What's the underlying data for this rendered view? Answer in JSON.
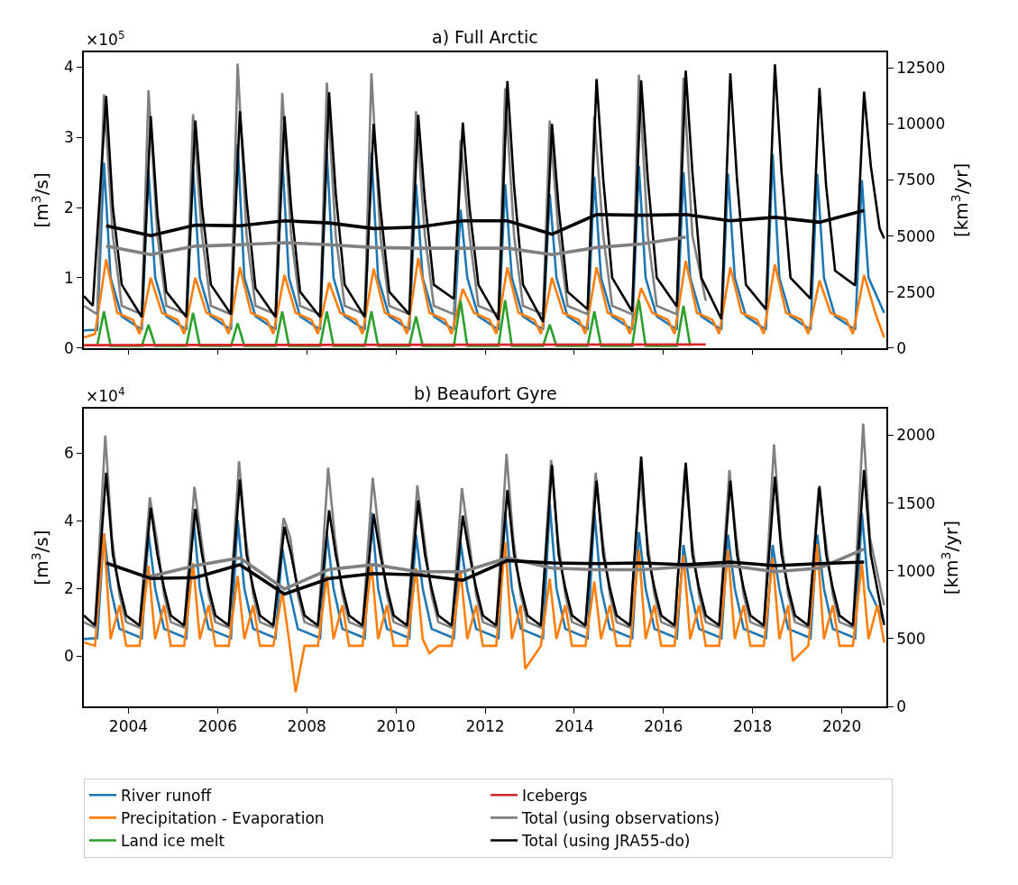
{
  "chart_data": [
    {
      "type": "line",
      "title": "a) Full Arctic",
      "ylabel": "[m$^{3}$/s]",
      "y2label": "[km$^{3}$/yr]",
      "annotations": [
        "×10$^{5}$"
      ],
      "legend": "bottom",
      "tick_labels": "y",
      "xlim": [
        2003,
        2021
      ],
      "xticks": [
        {
          "value": 2004,
          "label": null
        },
        {
          "value": 2006,
          "label": null
        },
        {
          "value": 2008,
          "label": null
        },
        {
          "value": 2010,
          "label": null
        },
        {
          "value": 2012,
          "label": null
        },
        {
          "value": 2014,
          "label": null
        },
        {
          "value": 2016,
          "label": null
        },
        {
          "value": 2018,
          "label": null
        },
        {
          "value": 2020,
          "label": null
        }
      ],
      "ylim": [
        0,
        4.21
      ],
      "yticks": [
        0,
        1,
        2,
        3,
        4
      ],
      "y2lim": [
        0,
        13200
      ],
      "y2ticks": [
        0,
        2500,
        5000,
        7500,
        10000,
        12500
      ],
      "series": [
        {
          "name": "River runoff",
          "color": "#1f77b4",
          "x": [
            2003.0,
            2003.3,
            2003.45,
            2003.6,
            2003.85,
            2004.3,
            2004.45,
            2004.6,
            2004.85,
            2005.3,
            2005.45,
            2005.6,
            2005.85,
            2006.3,
            2006.45,
            2006.6,
            2006.85,
            2007.3,
            2007.45,
            2007.6,
            2007.85,
            2008.3,
            2008.45,
            2008.6,
            2008.85,
            2009.3,
            2009.45,
            2009.6,
            2009.85,
            2010.3,
            2010.45,
            2010.6,
            2010.85,
            2011.3,
            2011.45,
            2011.6,
            2011.85,
            2012.3,
            2012.45,
            2012.6,
            2012.85,
            2013.3,
            2013.45,
            2013.6,
            2013.85,
            2014.3,
            2014.45,
            2014.6,
            2014.85,
            2015.3,
            2015.45,
            2015.6,
            2015.85,
            2016.3,
            2016.45,
            2016.6,
            2016.85,
            2017.3,
            2017.45,
            2017.6,
            2017.85,
            2018.3,
            2018.45,
            2018.6,
            2018.85,
            2019.3,
            2019.45,
            2019.6,
            2019.85,
            2020.3,
            2020.45,
            2020.6,
            2020.95
          ],
          "values": [
            0.25,
            0.26,
            2.64,
            1.0,
            0.45,
            0.26,
            2.52,
            1.0,
            0.45,
            0.26,
            2.55,
            1.0,
            0.45,
            0.26,
            2.91,
            1.0,
            0.45,
            0.26,
            2.7,
            1.0,
            0.45,
            0.26,
            2.79,
            1.0,
            0.45,
            0.26,
            2.78,
            1.0,
            0.45,
            0.26,
            2.33,
            1.0,
            0.45,
            0.26,
            1.97,
            1.0,
            0.45,
            0.26,
            2.33,
            1.0,
            0.45,
            0.26,
            2.19,
            1.0,
            0.45,
            0.26,
            2.44,
            1.0,
            0.45,
            0.26,
            2.59,
            1.0,
            0.45,
            0.26,
            2.5,
            1.0,
            0.45,
            0.26,
            2.48,
            1.0,
            0.45,
            0.26,
            2.76,
            1.0,
            0.45,
            0.26,
            2.48,
            1.0,
            0.45,
            0.26,
            2.39,
            1.0,
            0.5
          ]
        },
        {
          "name": "Precipitation - Evaporation",
          "color": "#ff7f0e",
          "x": [
            2003.0,
            2003.25,
            2003.5,
            2003.75,
            2004.1,
            2004.25,
            2004.5,
            2004.75,
            2005.1,
            2005.25,
            2005.5,
            2005.75,
            2006.1,
            2006.25,
            2006.5,
            2006.75,
            2007.1,
            2007.25,
            2007.5,
            2007.75,
            2008.1,
            2008.25,
            2008.5,
            2008.75,
            2009.1,
            2009.25,
            2009.5,
            2009.75,
            2010.1,
            2010.25,
            2010.5,
            2010.75,
            2011.1,
            2011.25,
            2011.5,
            2011.75,
            2012.1,
            2012.25,
            2012.5,
            2012.75,
            2013.1,
            2013.25,
            2013.5,
            2013.75,
            2014.1,
            2014.25,
            2014.5,
            2014.75,
            2015.1,
            2015.25,
            2015.5,
            2015.75,
            2016.1,
            2016.25,
            2016.5,
            2016.75,
            2017.1,
            2017.25,
            2017.5,
            2017.75,
            2018.1,
            2018.25,
            2018.5,
            2018.75,
            2019.1,
            2019.25,
            2019.5,
            2019.75,
            2020.1,
            2020.25,
            2020.5,
            2020.75,
            2020.95
          ],
          "values": [
            0.15,
            0.2,
            1.26,
            0.5,
            0.4,
            0.2,
            1.0,
            0.5,
            0.4,
            0.2,
            1.0,
            0.5,
            0.4,
            0.2,
            1.15,
            0.5,
            0.4,
            0.2,
            1.04,
            0.5,
            0.4,
            0.2,
            0.93,
            0.5,
            0.4,
            0.2,
            1.13,
            0.5,
            0.4,
            0.2,
            1.28,
            0.5,
            0.4,
            0.2,
            0.84,
            0.5,
            0.4,
            0.2,
            1.15,
            0.5,
            0.4,
            0.2,
            1.0,
            0.5,
            0.4,
            0.2,
            1.15,
            0.5,
            0.4,
            0.2,
            0.85,
            0.5,
            0.4,
            0.2,
            1.24,
            0.5,
            0.4,
            0.2,
            1.15,
            0.5,
            0.4,
            0.2,
            1.19,
            0.5,
            0.4,
            0.2,
            0.96,
            0.5,
            0.4,
            0.2,
            1.04,
            0.5,
            0.15
          ]
        },
        {
          "name": "Land ice melt",
          "color": "#2ca02c",
          "x": [
            2003.3,
            2003.45,
            2003.6,
            2004.3,
            2004.45,
            2004.6,
            2005.3,
            2005.45,
            2005.6,
            2006.3,
            2006.45,
            2006.6,
            2007.3,
            2007.45,
            2007.6,
            2008.3,
            2008.45,
            2008.6,
            2009.3,
            2009.45,
            2009.6,
            2010.3,
            2010.45,
            2010.6,
            2011.3,
            2011.45,
            2011.6,
            2012.3,
            2012.45,
            2012.6,
            2013.3,
            2013.45,
            2013.6,
            2014.3,
            2014.45,
            2014.6,
            2015.3,
            2015.45,
            2015.6,
            2016.3,
            2016.45,
            2016.6
          ],
          "values": [
            0.03,
            0.52,
            0.03,
            0.03,
            0.33,
            0.03,
            0.03,
            0.5,
            0.03,
            0.03,
            0.35,
            0.03,
            0.03,
            0.52,
            0.03,
            0.03,
            0.52,
            0.03,
            0.03,
            0.52,
            0.03,
            0.03,
            0.45,
            0.03,
            0.03,
            0.67,
            0.03,
            0.03,
            0.68,
            0.03,
            0.03,
            0.33,
            0.03,
            0.03,
            0.52,
            0.03,
            0.03,
            0.68,
            0.03,
            0.03,
            0.6,
            0.03
          ]
        },
        {
          "name": "Icebergs",
          "color": "#d62728",
          "x": [
            2003.0,
            2016.95
          ],
          "values": [
            0.04,
            0.05
          ]
        },
        {
          "name": "Total (using observations)",
          "color": "#808080",
          "x": [
            2003.0,
            2003.3,
            2003.45,
            2003.65,
            2003.85,
            2004.3,
            2004.45,
            2004.65,
            2004.85,
            2005.3,
            2005.45,
            2005.65,
            2005.85,
            2006.3,
            2006.45,
            2006.65,
            2006.85,
            2007.3,
            2007.45,
            2007.65,
            2007.85,
            2008.3,
            2008.45,
            2008.65,
            2008.85,
            2009.3,
            2009.45,
            2009.65,
            2009.85,
            2010.3,
            2010.45,
            2010.65,
            2010.85,
            2011.3,
            2011.45,
            2011.65,
            2011.85,
            2012.3,
            2012.45,
            2012.65,
            2012.85,
            2013.3,
            2013.45,
            2013.65,
            2013.85,
            2014.3,
            2014.45,
            2014.65,
            2014.85,
            2015.3,
            2015.45,
            2015.65,
            2015.85,
            2016.3,
            2016.45,
            2016.65,
            2016.95
          ],
          "values": [
            0.6,
            0.48,
            3.61,
            1.6,
            0.6,
            0.48,
            3.67,
            1.6,
            0.6,
            0.48,
            3.33,
            1.6,
            0.6,
            0.48,
            4.05,
            1.6,
            0.6,
            0.48,
            3.63,
            1.6,
            0.6,
            0.48,
            3.78,
            1.6,
            0.6,
            0.48,
            3.91,
            1.6,
            0.6,
            0.48,
            3.37,
            1.6,
            0.6,
            0.48,
            2.96,
            1.6,
            0.6,
            0.48,
            3.7,
            1.6,
            0.6,
            0.48,
            3.24,
            1.6,
            0.6,
            0.48,
            3.3,
            1.6,
            0.6,
            0.48,
            3.89,
            1.6,
            0.6,
            0.48,
            3.85,
            1.6,
            0.67
          ]
        },
        {
          "name": "Total (using JRA55-do)",
          "color": "#000000",
          "x": [
            2003.0,
            2003.2,
            2003.5,
            2003.65,
            2003.85,
            2004.3,
            2004.5,
            2004.65,
            2004.85,
            2005.3,
            2005.5,
            2005.65,
            2005.85,
            2006.3,
            2006.5,
            2006.65,
            2006.85,
            2007.3,
            2007.5,
            2007.65,
            2007.85,
            2008.3,
            2008.5,
            2008.65,
            2008.85,
            2009.3,
            2009.5,
            2009.65,
            2009.85,
            2010.3,
            2010.5,
            2010.65,
            2010.85,
            2011.3,
            2011.5,
            2011.65,
            2011.85,
            2012.3,
            2012.5,
            2012.65,
            2012.85,
            2013.3,
            2013.5,
            2013.65,
            2013.85,
            2014.3,
            2014.5,
            2014.65,
            2014.85,
            2015.3,
            2015.5,
            2015.65,
            2015.85,
            2016.3,
            2016.5,
            2016.65,
            2016.85,
            2017.3,
            2017.5,
            2017.65,
            2017.85,
            2018.3,
            2018.5,
            2018.65,
            2018.85,
            2019.3,
            2019.5,
            2019.65,
            2019.85,
            2020.3,
            2020.5,
            2020.65,
            2020.85,
            2020.95
          ],
          "values": [
            0.74,
            0.6,
            3.59,
            2.0,
            0.9,
            0.44,
            3.3,
            1.9,
            0.8,
            0.44,
            3.24,
            2.0,
            0.9,
            0.48,
            3.37,
            2.1,
            0.85,
            0.44,
            3.3,
            2.0,
            0.8,
            0.44,
            3.64,
            2.2,
            0.9,
            0.44,
            3.19,
            2.0,
            0.8,
            0.48,
            3.32,
            2.1,
            0.9,
            0.7,
            3.21,
            2.0,
            0.9,
            0.4,
            3.8,
            2.3,
            0.9,
            0.37,
            3.19,
            2.0,
            0.8,
            0.55,
            3.83,
            2.4,
            1.0,
            0.52,
            3.81,
            2.4,
            1.0,
            0.59,
            3.95,
            2.5,
            1.0,
            0.41,
            3.91,
            2.4,
            0.9,
            0.55,
            4.04,
            2.5,
            1.0,
            0.7,
            3.7,
            2.3,
            1.1,
            0.89,
            3.65,
            2.6,
            1.7,
            1.56
          ]
        },
        {
          "color": "#808080",
          "x": [
            2003.5,
            2004.5,
            2005.5,
            2006.5,
            2007.5,
            2008.5,
            2009.5,
            2010.5,
            2011.5,
            2012.5,
            2013.5,
            2014.5,
            2015.5,
            2016.5
          ],
          "values": [
            1.45,
            1.33,
            1.45,
            1.47,
            1.5,
            1.47,
            1.43,
            1.42,
            1.42,
            1.42,
            1.33,
            1.43,
            1.48,
            1.58
          ]
        },
        {
          "color": "#000000",
          "x": [
            2003.5,
            2004.5,
            2005.5,
            2006.5,
            2007.5,
            2008.5,
            2009.5,
            2010.5,
            2011.5,
            2012.5,
            2013.5,
            2014.5,
            2015.5,
            2016.5,
            2017.5,
            2018.5,
            2019.5,
            2020.5
          ],
          "values": [
            1.74,
            1.6,
            1.75,
            1.74,
            1.81,
            1.78,
            1.7,
            1.72,
            1.81,
            1.81,
            1.62,
            1.9,
            1.89,
            1.9,
            1.81,
            1.86,
            1.79,
            1.96
          ]
        }
      ]
    },
    {
      "type": "line",
      "title": "b) Beaufort Gyre",
      "ylabel": "[m$^{3}$/s]",
      "y2label": "[km$^{3}$/yr]",
      "annotations": [
        "×10$^{4}$"
      ],
      "legend": "bottom",
      "xlim": [
        2003,
        2021
      ],
      "xticks": [
        2004,
        2006,
        2008,
        2010,
        2012,
        2014,
        2016,
        2018,
        2020
      ],
      "ylim": [
        -1.49,
        7.31
      ],
      "yticks": [
        0,
        2,
        4,
        6
      ],
      "y2lim": [
        0,
        2195
      ],
      "y2ticks": [
        0,
        500,
        1000,
        1500,
        2000
      ],
      "series": [
        {
          "name": "River runoff",
          "color": "#1f77b4",
          "x": [
            2003.0,
            2003.3,
            2003.45,
            2003.6,
            2003.8,
            2004.3,
            2004.45,
            2004.6,
            2004.8,
            2005.3,
            2005.45,
            2005.6,
            2005.8,
            2006.3,
            2006.45,
            2006.6,
            2006.8,
            2007.3,
            2007.45,
            2007.6,
            2007.8,
            2008.3,
            2008.45,
            2008.6,
            2008.8,
            2009.3,
            2009.45,
            2009.6,
            2009.8,
            2010.3,
            2010.45,
            2010.6,
            2010.8,
            2011.3,
            2011.45,
            2011.6,
            2011.8,
            2012.3,
            2012.45,
            2012.6,
            2012.8,
            2013.3,
            2013.45,
            2013.6,
            2013.8,
            2014.3,
            2014.45,
            2014.6,
            2014.8,
            2015.3,
            2015.45,
            2015.6,
            2015.8,
            2016.3,
            2016.45,
            2016.6,
            2016.8,
            2017.3,
            2017.45,
            2017.6,
            2017.8,
            2018.3,
            2018.45,
            2018.6,
            2018.8,
            2019.3,
            2019.45,
            2019.6,
            2019.8,
            2020.3,
            2020.45,
            2020.6,
            2020.95
          ],
          "values": [
            0.5,
            0.53,
            3.62,
            2.0,
            0.8,
            0.53,
            3.62,
            2.0,
            0.8,
            0.53,
            4.23,
            2.0,
            0.8,
            0.53,
            4.02,
            2.0,
            0.8,
            0.53,
            3.2,
            2.0,
            0.8,
            0.53,
            3.62,
            2.0,
            0.8,
            0.53,
            4.24,
            2.0,
            0.8,
            0.53,
            3.59,
            2.0,
            0.8,
            0.53,
            3.36,
            2.0,
            0.8,
            0.53,
            4.27,
            2.0,
            0.8,
            0.53,
            4.5,
            2.0,
            0.8,
            0.53,
            4.27,
            2.0,
            0.8,
            0.53,
            3.66,
            2.0,
            0.8,
            0.53,
            3.28,
            2.0,
            0.8,
            0.53,
            3.59,
            2.0,
            0.8,
            0.53,
            3.28,
            2.0,
            0.8,
            0.53,
            3.59,
            2.0,
            0.8,
            0.53,
            4.23,
            2.0,
            1.0
          ]
        },
        {
          "name": "Precipitation - Evaporation",
          "color": "#ff7f0e",
          "x": [
            2003.0,
            2003.25,
            2003.45,
            2003.6,
            2003.8,
            2003.95,
            2004.25,
            2004.45,
            2004.6,
            2004.8,
            2004.95,
            2005.25,
            2005.45,
            2005.6,
            2005.8,
            2005.95,
            2006.25,
            2006.45,
            2006.6,
            2006.8,
            2006.95,
            2007.25,
            2007.45,
            2007.6,
            2007.75,
            2007.95,
            2008.25,
            2008.45,
            2008.6,
            2008.8,
            2008.95,
            2009.25,
            2009.45,
            2009.6,
            2009.8,
            2009.95,
            2010.25,
            2010.45,
            2010.6,
            2010.75,
            2010.95,
            2011.25,
            2011.45,
            2011.6,
            2011.8,
            2011.95,
            2012.25,
            2012.45,
            2012.6,
            2012.8,
            2012.9,
            2013.25,
            2013.45,
            2013.6,
            2013.8,
            2013.95,
            2014.25,
            2014.45,
            2014.6,
            2014.8,
            2014.95,
            2015.25,
            2015.45,
            2015.6,
            2015.8,
            2015.95,
            2016.25,
            2016.45,
            2016.6,
            2016.8,
            2016.95,
            2017.25,
            2017.45,
            2017.6,
            2017.8,
            2017.95,
            2018.25,
            2018.45,
            2018.6,
            2018.8,
            2018.9,
            2019.25,
            2019.45,
            2019.6,
            2019.8,
            2019.95,
            2020.25,
            2020.45,
            2020.6,
            2020.8,
            2020.95
          ],
          "values": [
            0.4,
            0.3,
            3.62,
            0.5,
            1.5,
            0.3,
            0.3,
            2.67,
            0.5,
            1.5,
            0.3,
            0.3,
            2.75,
            0.5,
            1.5,
            0.3,
            0.3,
            2.37,
            0.5,
            1.5,
            0.3,
            0.3,
            1.9,
            0.5,
            -1.07,
            0.3,
            0.3,
            2.37,
            0.5,
            1.5,
            0.3,
            0.3,
            2.73,
            0.5,
            1.5,
            0.3,
            0.3,
            2.6,
            0.5,
            0.08,
            0.3,
            0.3,
            2.5,
            0.5,
            1.5,
            0.3,
            0.3,
            3.36,
            0.5,
            1.5,
            -0.38,
            0.3,
            2.29,
            0.5,
            1.5,
            0.3,
            0.3,
            2.2,
            0.5,
            1.5,
            0.3,
            0.3,
            3.13,
            0.5,
            1.5,
            0.3,
            0.3,
            2.98,
            0.5,
            1.5,
            0.3,
            0.3,
            3.13,
            0.5,
            1.5,
            0.3,
            0.3,
            2.9,
            0.5,
            1.5,
            -0.15,
            0.3,
            3.31,
            0.5,
            1.5,
            0.3,
            0.3,
            2.75,
            0.5,
            1.5,
            0.4
          ]
        },
        {
          "name": "Total (using observations)",
          "color": "#808080",
          "x": [
            2003.0,
            2003.25,
            2003.48,
            2003.63,
            2003.8,
            2003.95,
            2004.25,
            2004.48,
            2004.63,
            2004.8,
            2004.95,
            2005.25,
            2005.48,
            2005.63,
            2005.8,
            2005.95,
            2006.25,
            2006.48,
            2006.63,
            2006.8,
            2006.95,
            2007.25,
            2007.48,
            2007.63,
            2007.8,
            2007.95,
            2008.25,
            2008.48,
            2008.63,
            2008.8,
            2008.95,
            2009.25,
            2009.48,
            2009.63,
            2009.8,
            2009.95,
            2010.25,
            2010.48,
            2010.63,
            2010.8,
            2010.95,
            2011.25,
            2011.48,
            2011.63,
            2011.8,
            2011.95,
            2012.25,
            2012.48,
            2012.63,
            2012.8,
            2012.95,
            2013.25,
            2013.48,
            2013.63,
            2013.8,
            2013.95,
            2014.25,
            2014.48,
            2014.63,
            2014.8,
            2014.95,
            2015.25,
            2015.48,
            2015.63,
            2015.8,
            2015.95,
            2016.25,
            2016.48,
            2016.63,
            2016.8,
            2016.95,
            2017.25,
            2017.48,
            2017.63,
            2017.8,
            2017.95,
            2018.25,
            2018.48,
            2018.63,
            2018.8,
            2018.95,
            2019.25,
            2019.48,
            2019.63,
            2019.8,
            2019.95,
            2020.25,
            2020.48,
            2020.63,
            2020.95
          ],
          "values": [
            1.0,
            0.84,
            6.52,
            3.5,
            1.8,
            1.0,
            0.84,
            4.69,
            3.5,
            1.8,
            1.0,
            0.84,
            5.0,
            3.5,
            1.8,
            1.0,
            0.84,
            5.76,
            3.5,
            1.8,
            1.0,
            0.84,
            4.08,
            3.5,
            1.8,
            1.0,
            0.84,
            5.57,
            3.5,
            1.8,
            1.0,
            0.84,
            5.27,
            3.5,
            1.8,
            1.0,
            0.84,
            5.04,
            3.5,
            1.8,
            1.0,
            0.84,
            4.96,
            3.5,
            1.8,
            1.0,
            0.84,
            5.98,
            3.5,
            1.8,
            1.0,
            0.84,
            5.8,
            3.5,
            1.8,
            1.0,
            0.84,
            5.42,
            3.5,
            1.8,
            1.0,
            0.84,
            5.34,
            3.5,
            1.8,
            1.0,
            0.84,
            5.5,
            3.5,
            1.8,
            1.0,
            0.84,
            5.5,
            3.5,
            1.8,
            1.0,
            0.84,
            6.26,
            3.5,
            1.8,
            1.0,
            0.84,
            4.96,
            3.5,
            1.8,
            1.0,
            0.84,
            6.87,
            3.5,
            1.5
          ]
        },
        {
          "name": "Total (using JRA55-do)",
          "color": "#000000",
          "x": [
            2003.0,
            2003.25,
            2003.5,
            2003.65,
            2003.8,
            2003.95,
            2004.25,
            2004.5,
            2004.65,
            2004.8,
            2004.95,
            2005.25,
            2005.5,
            2005.65,
            2005.8,
            2005.95,
            2006.25,
            2006.5,
            2006.65,
            2006.8,
            2006.95,
            2007.25,
            2007.5,
            2007.65,
            2007.8,
            2007.95,
            2008.25,
            2008.5,
            2008.65,
            2008.8,
            2008.95,
            2009.25,
            2009.5,
            2009.65,
            2009.8,
            2009.95,
            2010.25,
            2010.5,
            2010.65,
            2010.8,
            2010.95,
            2011.25,
            2011.5,
            2011.65,
            2011.8,
            2011.95,
            2012.25,
            2012.5,
            2012.65,
            2012.8,
            2012.95,
            2013.25,
            2013.5,
            2013.65,
            2013.8,
            2013.95,
            2014.25,
            2014.5,
            2014.65,
            2014.8,
            2014.95,
            2015.25,
            2015.5,
            2015.65,
            2015.8,
            2015.95,
            2016.25,
            2016.5,
            2016.65,
            2016.8,
            2016.95,
            2017.25,
            2017.5,
            2017.65,
            2017.8,
            2017.95,
            2018.25,
            2018.5,
            2018.65,
            2018.8,
            2018.95,
            2019.25,
            2019.5,
            2019.65,
            2019.8,
            2019.95,
            2020.25,
            2020.5,
            2020.65,
            2020.95
          ],
          "values": [
            1.2,
            0.9,
            5.42,
            3.0,
            2.0,
            1.2,
            0.9,
            4.38,
            3.0,
            2.0,
            1.2,
            0.9,
            4.35,
            3.0,
            2.0,
            1.2,
            0.9,
            5.22,
            3.0,
            2.0,
            1.2,
            0.9,
            3.82,
            3.0,
            2.0,
            1.2,
            0.9,
            4.31,
            3.0,
            2.0,
            1.2,
            0.9,
            4.2,
            3.0,
            2.0,
            1.2,
            0.9,
            4.6,
            3.0,
            2.0,
            1.2,
            0.9,
            4.15,
            3.0,
            2.0,
            1.2,
            0.9,
            4.9,
            3.0,
            2.0,
            1.2,
            0.9,
            5.65,
            3.0,
            2.0,
            1.2,
            0.9,
            5.18,
            3.0,
            2.0,
            1.2,
            0.9,
            5.9,
            3.0,
            2.0,
            1.2,
            0.9,
            5.72,
            3.0,
            2.0,
            1.2,
            0.9,
            5.18,
            3.0,
            2.0,
            1.2,
            0.9,
            5.3,
            3.0,
            2.0,
            1.2,
            0.9,
            5.02,
            3.0,
            2.0,
            1.2,
            0.9,
            5.5,
            3.0,
            0.92
          ]
        },
        {
          "color": "#808080",
          "x": [
            2004.3,
            2005.5,
            2006.5,
            2007.5,
            2008.5,
            2009.5,
            2010.5,
            2011.5,
            2012.5,
            2013.5,
            2014.5,
            2015.5,
            2016.5,
            2017.5,
            2018.5,
            2019.5,
            2020.5
          ],
          "values": [
            2.29,
            2.67,
            2.9,
            1.98,
            2.56,
            2.7,
            2.49,
            2.49,
            2.9,
            2.6,
            2.55,
            2.55,
            2.64,
            2.67,
            2.49,
            2.6,
            3.16
          ]
        },
        {
          "color": "#000000",
          "x": [
            2003.5,
            2004.5,
            2005.5,
            2006.5,
            2007.5,
            2008.5,
            2009.5,
            2010.5,
            2011.5,
            2012.5,
            2013.5,
            2014.5,
            2015.5,
            2016.5,
            2017.5,
            2018.5,
            2019.5,
            2020.5
          ],
          "values": [
            2.75,
            2.29,
            2.32,
            2.7,
            1.83,
            2.29,
            2.44,
            2.4,
            2.24,
            2.82,
            2.75,
            2.73,
            2.75,
            2.7,
            2.78,
            2.67,
            2.73,
            2.78
          ]
        }
      ]
    }
  ]
}
